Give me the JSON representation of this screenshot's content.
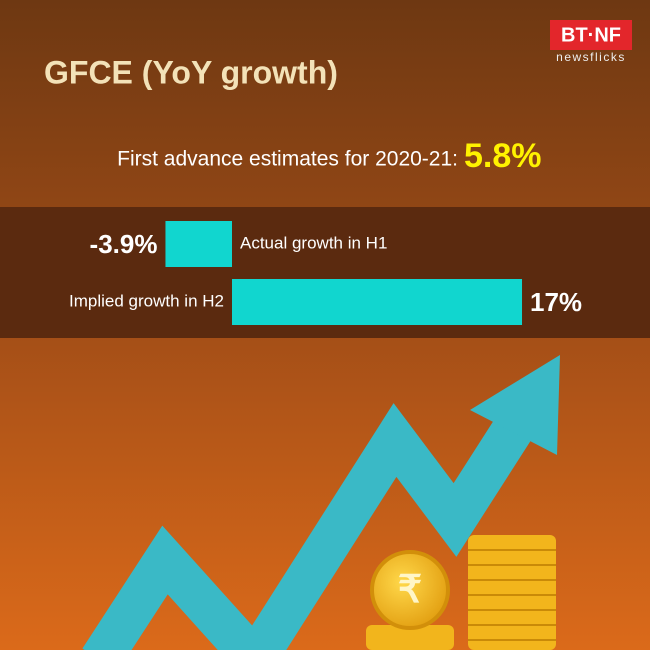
{
  "chart_data": {
    "type": "bar",
    "orientation": "horizontal",
    "title": "GFCE (YoY growth)",
    "subtitle": "First advance estimates for 2020-21:",
    "headline": "5.8%",
    "categories": [
      "Actual growth in H1",
      "Implied growth in H2"
    ],
    "values": [
      -3.9,
      17
    ],
    "value_labels": [
      "-3.9%",
      "17%"
    ],
    "color": "#11d6cf"
  },
  "logo": {
    "brand": "BT·NF",
    "tagline": "newsflicks"
  }
}
